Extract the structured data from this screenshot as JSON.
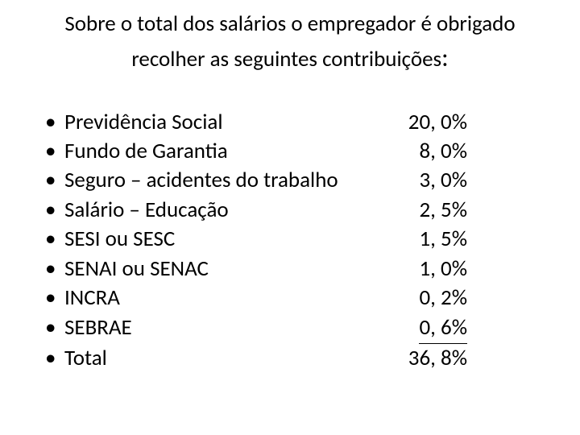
{
  "title": {
    "line1": "Sobre o total dos salários o empregador é obrigado",
    "line2_prefix": "recolher as seguintes contribuições",
    "colon": ":"
  },
  "items": [
    {
      "label": "Previdência Social",
      "value": "20, 0%",
      "underline": false
    },
    {
      "label": "Fundo de Garantia",
      "value": "8, 0%",
      "underline": false
    },
    {
      "label": "Seguro – acidentes do trabalho",
      "value": "3, 0%",
      "underline": false
    },
    {
      "label": "Salário – Educação",
      "value": "2, 5%",
      "underline": false
    },
    {
      "label": "SESI ou SESC",
      "value": "1, 5%",
      "underline": false
    },
    {
      "label": "SENAI ou SENAC",
      "value": "1, 0%",
      "underline": false
    },
    {
      "label": "INCRA",
      "value": "0, 2%",
      "underline": false
    },
    {
      "label": "SEBRAE",
      "value": "0, 6%",
      "underline": true
    },
    {
      "label": "Total",
      "value": "36, 8%",
      "underline": false
    }
  ],
  "bullet_char": "•",
  "colors": {
    "text": "#000000",
    "background": "#ffffff"
  },
  "fonts": {
    "family": "Calibri",
    "title_size": 27,
    "body_size": 27
  }
}
